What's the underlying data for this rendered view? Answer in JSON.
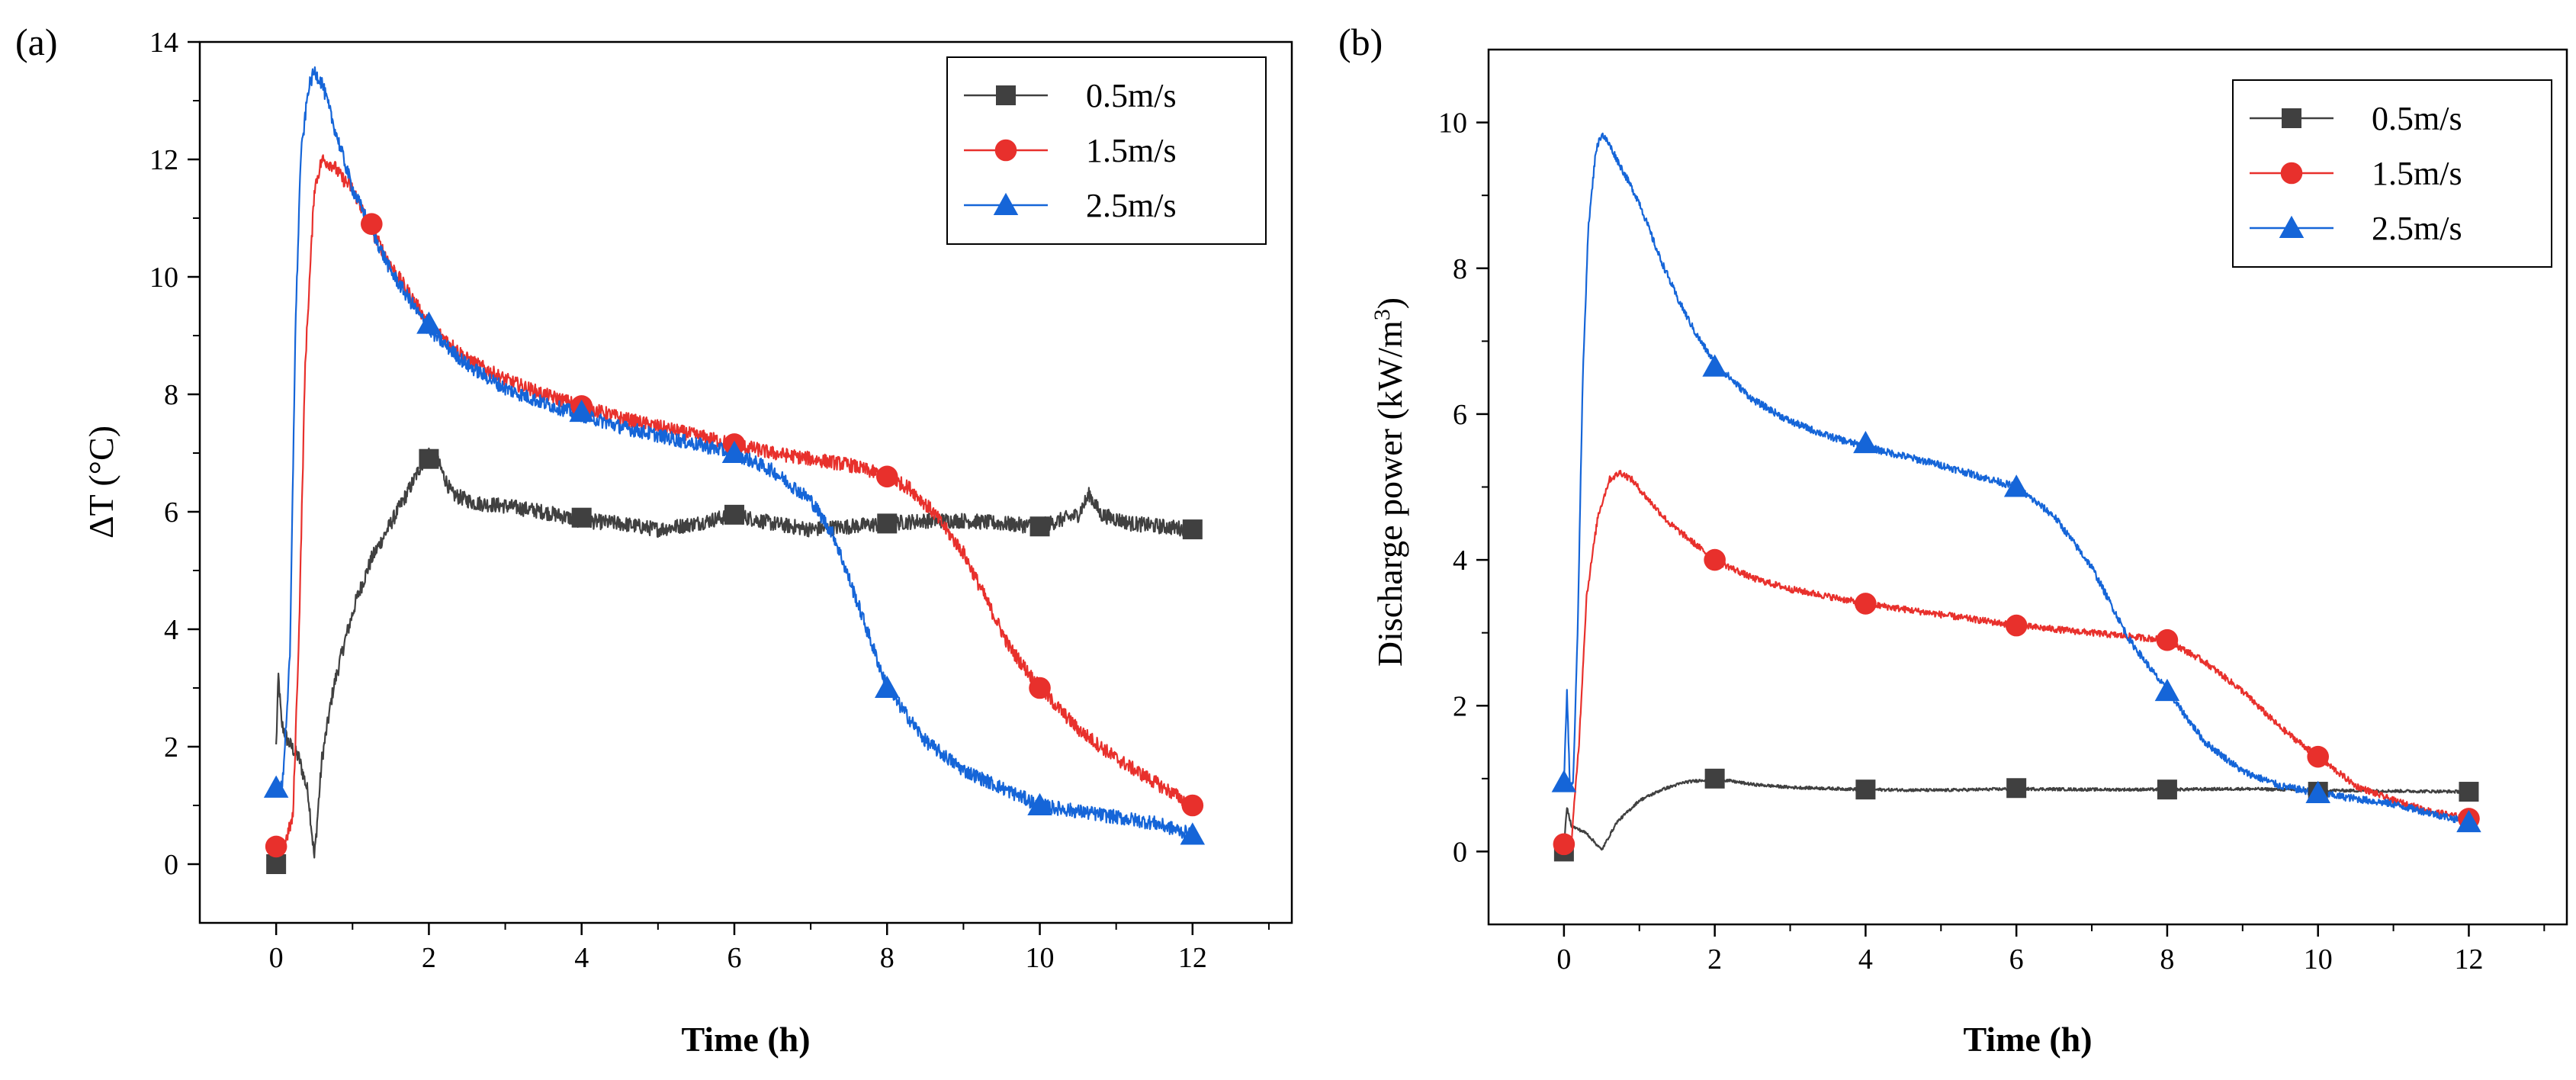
{
  "chart_data": [
    {
      "type": "line",
      "panel": "(a)",
      "xlabel": "Time (h)",
      "ylabel": "ΔT (°C)",
      "xlim": [
        -1,
        13.3
      ],
      "ylim": [
        -1,
        14
      ],
      "xticks": [
        0,
        2,
        4,
        6,
        8,
        10,
        12
      ],
      "yticks": [
        0,
        2,
        4,
        6,
        8,
        10,
        12,
        14
      ],
      "legend": "top-right",
      "series": [
        {
          "name": "0.5m/s",
          "color": "#404040",
          "marker": "square",
          "noise": 0.13,
          "markers": [
            [
              0,
              0
            ],
            [
              2,
              6.9
            ],
            [
              4,
              5.9
            ],
            [
              6,
              5.95
            ],
            [
              8,
              5.8
            ],
            [
              10,
              5.75
            ],
            [
              12,
              5.7
            ]
          ],
          "points": [
            [
              0,
              2.0
            ],
            [
              0.03,
              3.2
            ],
            [
              0.07,
              2.4
            ],
            [
              0.15,
              2.1
            ],
            [
              0.3,
              1.8
            ],
            [
              0.42,
              1.2
            ],
            [
              0.5,
              0.1
            ],
            [
              0.6,
              1.8
            ],
            [
              0.75,
              3.0
            ],
            [
              0.9,
              3.8
            ],
            [
              1.05,
              4.5
            ],
            [
              1.25,
              5.2
            ],
            [
              1.5,
              5.8
            ],
            [
              1.75,
              6.4
            ],
            [
              1.9,
              6.8
            ],
            [
              2.0,
              7.0
            ],
            [
              2.1,
              6.9
            ],
            [
              2.3,
              6.3
            ],
            [
              2.6,
              6.15
            ],
            [
              3.0,
              6.1
            ],
            [
              3.5,
              6.0
            ],
            [
              4.0,
              5.85
            ],
            [
              4.5,
              5.8
            ],
            [
              5.0,
              5.7
            ],
            [
              5.5,
              5.8
            ],
            [
              6.0,
              5.95
            ],
            [
              6.5,
              5.8
            ],
            [
              7.0,
              5.7
            ],
            [
              7.5,
              5.75
            ],
            [
              8.0,
              5.8
            ],
            [
              8.5,
              5.85
            ],
            [
              9.0,
              5.85
            ],
            [
              9.5,
              5.8
            ],
            [
              10.0,
              5.75
            ],
            [
              10.5,
              5.95
            ],
            [
              10.65,
              6.3
            ],
            [
              10.8,
              5.95
            ],
            [
              11.2,
              5.8
            ],
            [
              11.6,
              5.75
            ],
            [
              12.0,
              5.7
            ]
          ]
        },
        {
          "name": "1.5m/s",
          "color": "#e8302c",
          "marker": "circle",
          "noise": 0.12,
          "markers": [
            [
              0,
              0.3
            ],
            [
              1.25,
              10.9
            ],
            [
              4,
              7.8
            ],
            [
              6,
              7.15
            ],
            [
              8,
              6.6
            ],
            [
              10,
              3.0
            ],
            [
              12,
              1.0
            ]
          ],
          "points": [
            [
              0,
              0.3
            ],
            [
              0.1,
              0.3
            ],
            [
              0.22,
              0.8
            ],
            [
              0.3,
              4.0
            ],
            [
              0.38,
              8.5
            ],
            [
              0.5,
              11.5
            ],
            [
              0.6,
              12.0
            ],
            [
              0.75,
              11.9
            ],
            [
              0.85,
              11.7
            ],
            [
              1.0,
              11.5
            ],
            [
              1.25,
              10.8
            ],
            [
              1.5,
              10.2
            ],
            [
              1.75,
              9.7
            ],
            [
              2.0,
              9.2
            ],
            [
              2.5,
              8.6
            ],
            [
              3.0,
              8.25
            ],
            [
              3.5,
              8.0
            ],
            [
              4.0,
              7.8
            ],
            [
              4.5,
              7.6
            ],
            [
              5.0,
              7.45
            ],
            [
              5.5,
              7.3
            ],
            [
              6.0,
              7.15
            ],
            [
              6.5,
              7.0
            ],
            [
              7.0,
              6.9
            ],
            [
              7.5,
              6.8
            ],
            [
              8.0,
              6.6
            ],
            [
              8.3,
              6.4
            ],
            [
              8.6,
              6.0
            ],
            [
              9.0,
              5.3
            ],
            [
              9.3,
              4.5
            ],
            [
              9.6,
              3.7
            ],
            [
              10.0,
              3.0
            ],
            [
              10.5,
              2.3
            ],
            [
              11.0,
              1.8
            ],
            [
              11.5,
              1.4
            ],
            [
              12.0,
              1.0
            ]
          ]
        },
        {
          "name": "2.5m/s",
          "color": "#1565d8",
          "marker": "triangle",
          "noise": 0.12,
          "markers": [
            [
              0,
              1.3
            ],
            [
              2,
              9.2
            ],
            [
              4,
              7.7
            ],
            [
              6,
              7.0
            ],
            [
              8,
              3.0
            ],
            [
              10,
              1.0
            ],
            [
              12,
              0.5
            ]
          ],
          "points": [
            [
              0,
              1.3
            ],
            [
              0.08,
              1.3
            ],
            [
              0.18,
              3.5
            ],
            [
              0.25,
              9.0
            ],
            [
              0.32,
              12.0
            ],
            [
              0.42,
              13.2
            ],
            [
              0.5,
              13.5
            ],
            [
              0.6,
              13.3
            ],
            [
              0.75,
              12.6
            ],
            [
              1.0,
              11.5
            ],
            [
              1.25,
              10.8
            ],
            [
              1.5,
              10.1
            ],
            [
              1.75,
              9.6
            ],
            [
              2.0,
              9.1
            ],
            [
              2.5,
              8.5
            ],
            [
              3.0,
              8.1
            ],
            [
              3.5,
              7.85
            ],
            [
              4.0,
              7.65
            ],
            [
              4.5,
              7.45
            ],
            [
              5.0,
              7.3
            ],
            [
              5.5,
              7.15
            ],
            [
              6.0,
              7.0
            ],
            [
              6.5,
              6.7
            ],
            [
              7.0,
              6.2
            ],
            [
              7.3,
              5.6
            ],
            [
              7.6,
              4.5
            ],
            [
              8.0,
              3.0
            ],
            [
              8.5,
              2.1
            ],
            [
              9.0,
              1.6
            ],
            [
              9.5,
              1.3
            ],
            [
              10.0,
              1.0
            ],
            [
              10.5,
              0.9
            ],
            [
              11.0,
              0.8
            ],
            [
              11.5,
              0.7
            ],
            [
              12.0,
              0.5
            ]
          ]
        }
      ]
    },
    {
      "type": "line",
      "panel": "(b)",
      "xlabel": "Time (h)",
      "ylabel": "Discharge power (kW/m",
      "ylabel_sup": "3",
      "ylabel_end": ")",
      "xlim": [
        -1,
        13.3
      ],
      "ylim": [
        -1,
        11
      ],
      "xticks": [
        0,
        2,
        4,
        6,
        8,
        10,
        12
      ],
      "yticks": [
        0,
        2,
        4,
        6,
        8,
        10
      ],
      "legend": "top-right",
      "series": [
        {
          "name": "0.5m/s",
          "color": "#404040",
          "marker": "square",
          "noise": 0.02,
          "markers": [
            [
              0,
              0
            ],
            [
              2,
              1.0
            ],
            [
              4,
              0.85
            ],
            [
              6,
              0.87
            ],
            [
              8,
              0.85
            ],
            [
              10,
              0.82
            ],
            [
              12,
              0.82
            ]
          ],
          "points": [
            [
              0,
              0.1
            ],
            [
              0.04,
              0.6
            ],
            [
              0.1,
              0.35
            ],
            [
              0.3,
              0.25
            ],
            [
              0.5,
              0.02
            ],
            [
              0.7,
              0.4
            ],
            [
              1.0,
              0.7
            ],
            [
              1.3,
              0.85
            ],
            [
              1.6,
              0.95
            ],
            [
              2.0,
              1.0
            ],
            [
              2.5,
              0.92
            ],
            [
              3.0,
              0.88
            ],
            [
              4.0,
              0.85
            ],
            [
              5.0,
              0.84
            ],
            [
              6.0,
              0.86
            ],
            [
              7.0,
              0.85
            ],
            [
              8.0,
              0.85
            ],
            [
              9.0,
              0.86
            ],
            [
              10.0,
              0.84
            ],
            [
              11.0,
              0.83
            ],
            [
              12.0,
              0.82
            ]
          ]
        },
        {
          "name": "1.5m/s",
          "color": "#e8302c",
          "marker": "circle",
          "noise": 0.045,
          "markers": [
            [
              0,
              0.1
            ],
            [
              2,
              4.0
            ],
            [
              4,
              3.4
            ],
            [
              6,
              3.1
            ],
            [
              8,
              2.9
            ],
            [
              10,
              1.3
            ],
            [
              12,
              0.45
            ]
          ],
          "points": [
            [
              0,
              0.1
            ],
            [
              0.1,
              0.15
            ],
            [
              0.2,
              1.5
            ],
            [
              0.3,
              3.5
            ],
            [
              0.45,
              4.6
            ],
            [
              0.6,
              5.1
            ],
            [
              0.75,
              5.2
            ],
            [
              0.9,
              5.1
            ],
            [
              1.1,
              4.85
            ],
            [
              1.4,
              4.5
            ],
            [
              1.7,
              4.25
            ],
            [
              2.0,
              4.0
            ],
            [
              2.5,
              3.75
            ],
            [
              3.0,
              3.6
            ],
            [
              3.5,
              3.5
            ],
            [
              4.0,
              3.4
            ],
            [
              5.0,
              3.25
            ],
            [
              6.0,
              3.1
            ],
            [
              7.0,
              3.0
            ],
            [
              7.5,
              2.95
            ],
            [
              8.0,
              2.9
            ],
            [
              8.5,
              2.6
            ],
            [
              9.0,
              2.2
            ],
            [
              9.5,
              1.7
            ],
            [
              10.0,
              1.3
            ],
            [
              10.5,
              0.9
            ],
            [
              11.0,
              0.7
            ],
            [
              11.5,
              0.55
            ],
            [
              12.0,
              0.45
            ]
          ]
        },
        {
          "name": "2.5m/s",
          "color": "#1565d8",
          "marker": "triangle",
          "noise": 0.05,
          "markers": [
            [
              0,
              0.95
            ],
            [
              2,
              6.65
            ],
            [
              4,
              5.6
            ],
            [
              6,
              5.0
            ],
            [
              8,
              2.2
            ],
            [
              10,
              0.8
            ],
            [
              12,
              0.4
            ]
          ],
          "points": [
            [
              0,
              0.95
            ],
            [
              0.04,
              2.2
            ],
            [
              0.08,
              0.9
            ],
            [
              0.12,
              0.9
            ],
            [
              0.18,
              3.0
            ],
            [
              0.25,
              6.5
            ],
            [
              0.32,
              8.5
            ],
            [
              0.42,
              9.6
            ],
            [
              0.5,
              9.85
            ],
            [
              0.6,
              9.7
            ],
            [
              0.8,
              9.3
            ],
            [
              1.0,
              8.9
            ],
            [
              1.25,
              8.2
            ],
            [
              1.5,
              7.6
            ],
            [
              1.75,
              7.1
            ],
            [
              2.0,
              6.7
            ],
            [
              2.5,
              6.2
            ],
            [
              3.0,
              5.9
            ],
            [
              3.5,
              5.7
            ],
            [
              4.0,
              5.55
            ],
            [
              5.0,
              5.3
            ],
            [
              5.5,
              5.15
            ],
            [
              6.0,
              5.0
            ],
            [
              6.5,
              4.6
            ],
            [
              7.0,
              3.9
            ],
            [
              7.5,
              2.9
            ],
            [
              8.0,
              2.2
            ],
            [
              8.5,
              1.5
            ],
            [
              9.0,
              1.1
            ],
            [
              9.5,
              0.9
            ],
            [
              10.0,
              0.8
            ],
            [
              11.0,
              0.65
            ],
            [
              12.0,
              0.4
            ]
          ]
        }
      ]
    }
  ]
}
